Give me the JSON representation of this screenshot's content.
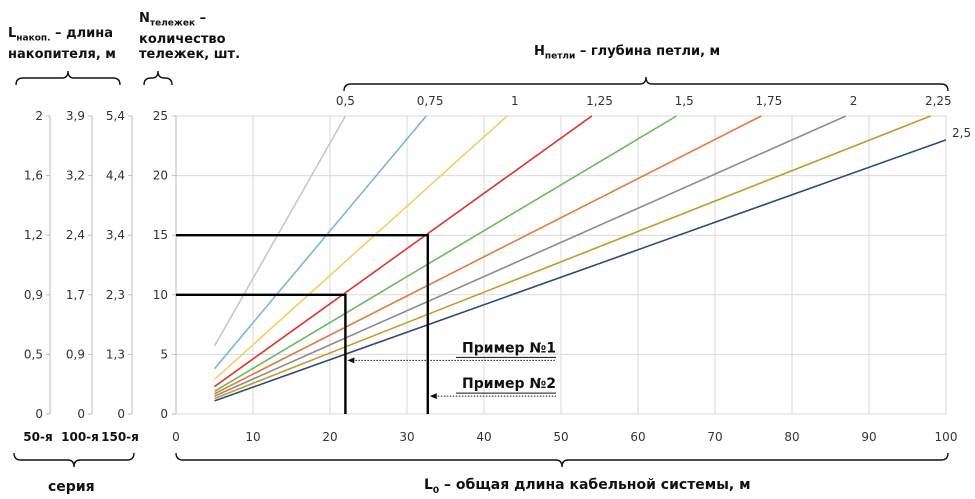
{
  "headers": {
    "lnakop_main": "L",
    "lnakop_sub": "накоп.",
    "lnakop_rest1": " – длина",
    "lnakop_rest2": "накопителя, м",
    "ntel_main": "N",
    "ntel_sub": "тележек",
    "ntel_rest1": " –",
    "ntel_rest2": "количество",
    "ntel_rest3": "тележек, шт.",
    "hloop_main": "H",
    "hloop_sub": "петли",
    "hloop_rest": " – глубина петли, м",
    "l0_main": "L",
    "l0_sub": "0",
    "l0_rest": " – общая длина кабельной системы, м",
    "series_label": "серия"
  },
  "colors": {
    "0.5": "#c8c8c8",
    "0.75": "#7ab6d6",
    "1": "#f2d062",
    "1.25": "#e0322e",
    "1.5": "#6cba5e",
    "1.75": "#e2793f",
    "2": "#8c8c8c",
    "2.25": "#c49a2c",
    "2.5": "#2b4f70",
    "grid": "#d9d9d9",
    "example": "#000000"
  },
  "chart_data": {
    "type": "line",
    "x_axis": {
      "label": "L0 – общая длина кабельной системы, м",
      "range": [
        0,
        100
      ],
      "ticks": [
        0,
        10,
        20,
        30,
        40,
        50,
        60,
        70,
        80,
        90,
        100
      ],
      "tick_labels": [
        "0",
        "10",
        "20",
        "30",
        "40",
        "50",
        "60",
        "70",
        "80",
        "90",
        "100"
      ]
    },
    "y_axis": {
      "label": "Nтележек – количество тележек, шт.",
      "range": [
        0,
        25
      ],
      "ticks": [
        0,
        5,
        10,
        15,
        20,
        25
      ],
      "tick_labels": [
        "0",
        "5",
        "10",
        "15",
        "20",
        "25"
      ]
    },
    "secondary_axes": [
      {
        "series": "50-я",
        "tick_labels": [
          "0",
          "0,5",
          "0,9",
          "1,2",
          "1,6",
          "2"
        ]
      },
      {
        "series": "100-я",
        "tick_labels": [
          "0",
          "0,9",
          "1,7",
          "2,4",
          "3,2",
          "3,9"
        ]
      },
      {
        "series": "150-я",
        "tick_labels": [
          "0",
          "1,3",
          "2,3",
          "3,4",
          "4,4",
          "5,4"
        ]
      }
    ],
    "h_axis": {
      "label": "Hпетли – глубина петли, м",
      "tick_labels": [
        "0,5",
        "0,75",
        "1",
        "1,25",
        "1,5",
        "1,75",
        "2",
        "2,25"
      ],
      "tick_x": [
        22,
        33,
        44,
        55,
        66,
        77,
        88,
        99
      ]
    },
    "series": [
      {
        "h": "0,5",
        "color_key": "0.5",
        "x": [
          5,
          22
        ],
        "y": [
          5.7,
          25
        ]
      },
      {
        "h": "0,75",
        "color_key": "0.75",
        "x": [
          5,
          32.5
        ],
        "y": [
          3.8,
          25
        ]
      },
      {
        "h": "1",
        "color_key": "1",
        "x": [
          5,
          43
        ],
        "y": [
          2.9,
          25
        ]
      },
      {
        "h": "1,25",
        "color_key": "1.25",
        "x": [
          5,
          54
        ],
        "y": [
          2.3,
          25
        ]
      },
      {
        "h": "1,5",
        "color_key": "1.5",
        "x": [
          5,
          65
        ],
        "y": [
          1.9,
          25
        ]
      },
      {
        "h": "1,75",
        "color_key": "1.75",
        "x": [
          5,
          76
        ],
        "y": [
          1.7,
          25
        ]
      },
      {
        "h": "2",
        "color_key": "2",
        "x": [
          5,
          87
        ],
        "y": [
          1.5,
          25
        ]
      },
      {
        "h": "2,25",
        "color_key": "2.25",
        "x": [
          5,
          98
        ],
        "y": [
          1.3,
          25
        ]
      },
      {
        "h": "2,5",
        "color_key": "2.5",
        "x": [
          5,
          100
        ],
        "y": [
          1.1,
          23
        ]
      }
    ],
    "examples": [
      {
        "label": "Пример №1",
        "x": 22,
        "y": 10,
        "pointer_y": 4.5
      },
      {
        "label": "Пример №2",
        "x": 32.7,
        "y": 15,
        "pointer_y": 1.5
      }
    ],
    "end_label": "2,5",
    "grid": true
  }
}
